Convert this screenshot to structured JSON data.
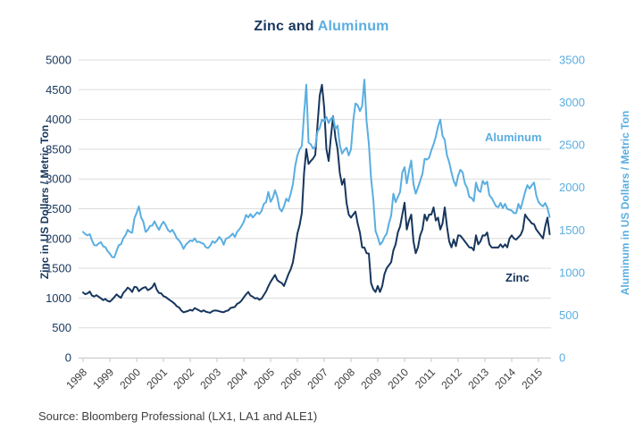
{
  "title": {
    "part1": "Zinc and",
    "part2": "Aluminum"
  },
  "colors": {
    "zinc": "#17365d",
    "aluminum": "#5aaee1",
    "grid": "#dcdcdc",
    "axis": "#c4c4c4",
    "x_tick_text": "#3d3d3d",
    "source_text": "#404040"
  },
  "left_axis": {
    "label": "Zinc in US Dollars / Metric Ton",
    "ticks": [
      0,
      500,
      1000,
      1500,
      2000,
      2500,
      3000,
      3500,
      4000,
      4500,
      5000
    ]
  },
  "right_axis": {
    "label": "Aluminum in US Dollars / Metric Ton",
    "ticks": [
      0,
      500,
      1000,
      1500,
      2000,
      2500,
      3000,
      3500
    ]
  },
  "x_axis": {
    "years": [
      1998,
      1999,
      2000,
      2001,
      2002,
      2003,
      2004,
      2005,
      2006,
      2007,
      2008,
      2009,
      2010,
      2011,
      2012,
      2013,
      2014,
      2015
    ]
  },
  "annotations": {
    "aluminum": "Aluminum",
    "zinc": "Zinc"
  },
  "source": "Source: Bloomberg Professional (LX1, LA1 and ALE1)",
  "chart_data": {
    "type": "line",
    "title": "Zinc and Aluminum",
    "x_start_year": 1998,
    "points_per_year": 12,
    "x_range": [
      1998.0,
      2015.5
    ],
    "left_ylabel": "Zinc in US Dollars / Metric Ton",
    "right_ylabel": "Aluminum in US Dollars / Metric Ton",
    "left_ylim": [
      0,
      5000
    ],
    "right_ylim": [
      0,
      3500
    ],
    "grid": "horizontal",
    "legend": "inline-annotations",
    "series": [
      {
        "name": "Zinc",
        "axis": "left",
        "color": "#17365d",
        "values": [
          1095,
          1065,
          1078,
          1110,
          1042,
          1025,
          1048,
          1022,
          995,
          965,
          985,
          952,
          940,
          975,
          1015,
          1062,
          1028,
          1005,
          1085,
          1125,
          1175,
          1148,
          1102,
          1188,
          1182,
          1115,
          1148,
          1172,
          1185,
          1132,
          1152,
          1183,
          1248,
          1142,
          1085,
          1080,
          1032,
          1018,
          988,
          962,
          935,
          905,
          862,
          842,
          792,
          762,
          772,
          782,
          802,
          788,
          832,
          812,
          792,
          772,
          795,
          772,
          762,
          752,
          782,
          792,
          788,
          778,
          768,
          762,
          782,
          792,
          832,
          842,
          852,
          902,
          922,
          958,
          1012,
          1062,
          1102,
          1042,
          1022,
          992,
          1002,
          972,
          992,
          1052,
          1112,
          1198,
          1272,
          1332,
          1388,
          1302,
          1272,
          1252,
          1202,
          1302,
          1402,
          1482,
          1602,
          1832,
          2082,
          2222,
          2432,
          3102,
          3502,
          3252,
          3302,
          3342,
          3402,
          3902,
          4402,
          4582,
          4202,
          3502,
          3302,
          3702,
          4052,
          3702,
          3502,
          3102,
          2902,
          3002,
          2602,
          2402,
          2352,
          2402,
          2452,
          2252,
          2102,
          1852,
          1848,
          1752,
          1748,
          1252,
          1148,
          1102,
          1202,
          1102,
          1202,
          1402,
          1502,
          1552,
          1602,
          1802,
          1902,
          2102,
          2202,
          2402,
          2602,
          2152,
          2302,
          2402,
          1952,
          1752,
          1852,
          2052,
          2152,
          2402,
          2302,
          2402,
          2402,
          2522,
          2302,
          2352,
          2152,
          2252,
          2522,
          2202,
          1952,
          1852,
          1982,
          1872,
          2052,
          2048,
          2002,
          1952,
          1902,
          1852,
          1848,
          1802,
          2052,
          1902,
          1952,
          2052,
          2048,
          2102,
          1902,
          1852,
          1848,
          1852,
          1848,
          1902,
          1852,
          1902,
          1852,
          2002,
          2052,
          2002,
          1982,
          2022,
          2062,
          2152,
          2402,
          2342,
          2302,
          2252,
          2242,
          2152,
          2102,
          2052,
          2002,
          2202,
          2352,
          2072
        ]
      },
      {
        "name": "Aluminum",
        "axis": "right",
        "color": "#5aaee1",
        "values": [
          1478,
          1452,
          1438,
          1452,
          1378,
          1322,
          1318,
          1342,
          1358,
          1308,
          1298,
          1252,
          1222,
          1182,
          1178,
          1252,
          1322,
          1332,
          1402,
          1438,
          1502,
          1478,
          1468,
          1638,
          1702,
          1778,
          1648,
          1598,
          1478,
          1502,
          1548,
          1552,
          1602,
          1548,
          1502,
          1558,
          1598,
          1558,
          1502,
          1478,
          1502,
          1458,
          1402,
          1378,
          1338,
          1278,
          1328,
          1352,
          1378,
          1368,
          1402,
          1358,
          1362,
          1348,
          1338,
          1298,
          1288,
          1318,
          1368,
          1348,
          1378,
          1418,
          1388,
          1328,
          1398,
          1408,
          1428,
          1458,
          1418,
          1478,
          1508,
          1548,
          1598,
          1678,
          1648,
          1688,
          1648,
          1678,
          1708,
          1688,
          1728,
          1808,
          1828,
          1948,
          1832,
          1878,
          1968,
          1888,
          1752,
          1718,
          1778,
          1868,
          1838,
          1928,
          2038,
          2248,
          2378,
          2448,
          2488,
          2868,
          3208,
          2528,
          2508,
          2458,
          2478,
          2658,
          2698,
          2798,
          2778,
          2828,
          2758,
          2808,
          2828,
          2688,
          2728,
          2498,
          2398,
          2438,
          2468,
          2378,
          2448,
          2778,
          2988,
          2968,
          2898,
          2958,
          3268,
          2778,
          2518,
          2108,
          1858,
          1488,
          1418,
          1328,
          1358,
          1418,
          1458,
          1578,
          1668,
          1928,
          1828,
          1888,
          1948,
          2178,
          2238,
          2048,
          2198,
          2318,
          2038,
          1928,
          1998,
          2078,
          2158,
          2338,
          2328,
          2348,
          2438,
          2508,
          2598,
          2718,
          2798,
          2608,
          2558,
          2378,
          2298,
          2178,
          2078,
          2018,
          2138,
          2208,
          2178,
          2048,
          1998,
          1888,
          1878,
          1838,
          2058,
          1968,
          1948,
          2078,
          2038,
          2068,
          1908,
          1878,
          1828,
          1778,
          1768,
          1818,
          1758,
          1808,
          1748,
          1738,
          1728,
          1698,
          1698,
          1808,
          1748,
          1848,
          1948,
          2028,
          1988,
          2028,
          2058,
          1908,
          1828,
          1798,
          1778,
          1818,
          1758,
          1652
        ]
      }
    ]
  }
}
